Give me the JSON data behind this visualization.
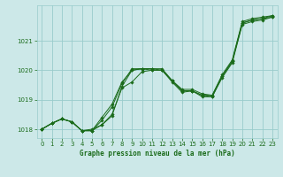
{
  "xlabel": "Graphe pression niveau de la mer (hPa)",
  "bg_color": "#cce8e8",
  "grid_color": "#99cccc",
  "line_color": "#1a6b1a",
  "ylim": [
    1017.7,
    1022.2
  ],
  "xlim": [
    -0.5,
    23.5
  ],
  "yticks": [
    1018,
    1019,
    1020,
    1021
  ],
  "xticks": [
    0,
    1,
    2,
    3,
    4,
    5,
    6,
    7,
    8,
    9,
    10,
    11,
    12,
    13,
    14,
    15,
    16,
    17,
    18,
    19,
    20,
    21,
    22,
    23
  ],
  "series": [
    [
      1018.0,
      1018.2,
      1018.35,
      1018.25,
      1017.95,
      1017.95,
      1018.3,
      1018.75,
      1019.55,
      1020.05,
      1020.05,
      1020.05,
      1020.05,
      1019.65,
      1019.35,
      1019.35,
      1019.2,
      1019.15,
      1019.85,
      1020.35,
      1021.65,
      1021.75,
      1021.8,
      1021.85
    ],
    [
      1018.0,
      1018.2,
      1018.35,
      1018.25,
      1017.95,
      1018.0,
      1018.15,
      1018.45,
      1019.45,
      1020.0,
      1020.05,
      1020.0,
      1020.0,
      1019.6,
      1019.25,
      1019.3,
      1019.1,
      1019.1,
      1019.75,
      1020.25,
      1021.55,
      1021.65,
      1021.7,
      1021.8
    ],
    [
      1018.0,
      1018.2,
      1018.35,
      1018.25,
      1017.95,
      1017.95,
      1018.4,
      1018.85,
      1019.6,
      1020.0,
      1020.05,
      1020.05,
      1020.0,
      1019.65,
      1019.3,
      1019.3,
      1019.15,
      1019.15,
      1019.8,
      1020.3,
      1021.6,
      1021.7,
      1021.75,
      1021.85
    ],
    [
      1018.0,
      1018.2,
      1018.35,
      1018.25,
      1017.95,
      1017.95,
      1018.15,
      1018.5,
      1019.4,
      1019.6,
      1019.95,
      1020.0,
      1020.0,
      1019.65,
      1019.3,
      1019.3,
      1019.15,
      1019.1,
      1019.8,
      1020.3,
      1021.6,
      1021.7,
      1021.75,
      1021.8
    ]
  ]
}
